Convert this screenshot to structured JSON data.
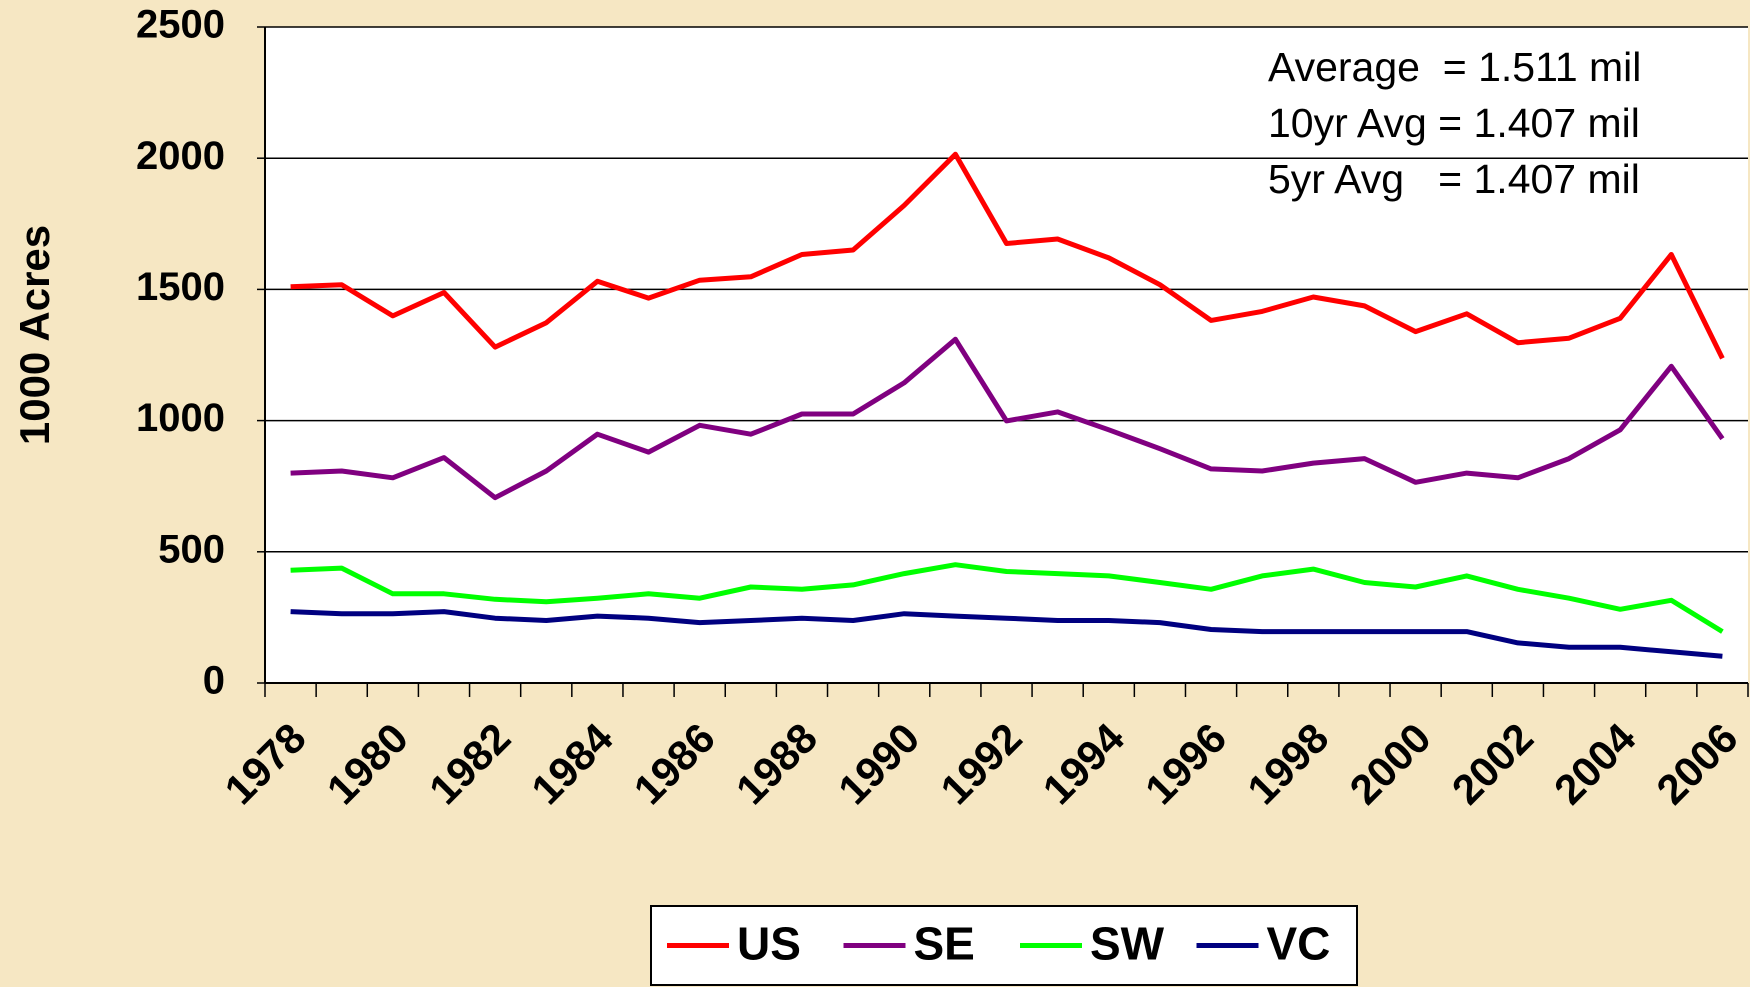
{
  "chart_data": {
    "type": "line",
    "y_label": "1000 Acres",
    "categories": [
      "1978",
      null,
      "1980",
      null,
      "1982",
      null,
      "1984",
      null,
      "1986",
      null,
      "1988",
      null,
      "1990",
      null,
      "1992",
      null,
      "1994",
      null,
      "1996",
      null,
      "1998",
      null,
      "2000",
      null,
      "2002",
      null,
      "2004",
      null,
      "2006"
    ],
    "series": [
      {
        "name": "US",
        "color": "#ff0000",
        "values": [
          1510,
          1518,
          1399,
          1488,
          1280,
          1373,
          1531,
          1467,
          1535,
          1548,
          1633,
          1650,
          1820,
          2015,
          1675,
          1692,
          1620,
          1518,
          1382,
          1416,
          1471,
          1437,
          1339,
          1407,
          1297,
          1314,
          1390,
          1633,
          1237
        ]
      },
      {
        "name": "SE",
        "color": "#800080",
        "values": [
          800,
          808,
          782,
          859,
          706,
          808,
          948,
          880,
          982,
          948,
          1025,
          1025,
          1144,
          1310,
          999,
          1033,
          965,
          893,
          816,
          808,
          838,
          855,
          765,
          800,
          782,
          855,
          965,
          1207,
          931
        ]
      },
      {
        "name": "SW",
        "color": "#00ff00",
        "values": [
          430,
          438,
          340,
          340,
          319,
          310,
          323,
          340,
          323,
          366,
          357,
          374,
          417,
          451,
          425,
          417,
          408,
          383,
          357,
          408,
          434,
          383,
          366,
          408,
          357,
          323,
          281,
          315,
          196
        ]
      },
      {
        "name": "VC",
        "color": "#000080",
        "values": [
          272,
          264,
          264,
          272,
          247,
          238,
          255,
          247,
          230,
          238,
          247,
          238,
          264,
          255,
          247,
          238,
          238,
          230,
          204,
          196,
          196,
          196,
          196,
          196,
          153,
          136,
          136,
          119,
          102
        ]
      }
    ],
    "ylim": [
      0,
      2500
    ],
    "yticks": [
      0,
      500,
      1000,
      1500,
      2000,
      2500
    ],
    "grid": true,
    "legend": "bottom",
    "annotations": [
      "Average  = 1.511 mil",
      "10yr Avg = 1.407 mil",
      "5yr Avg   = 1.407 mil"
    ]
  }
}
